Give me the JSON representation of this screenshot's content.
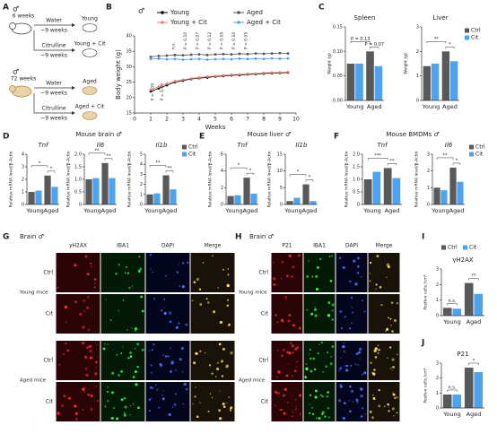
{
  "panel_labels": [
    "A",
    "B",
    "C",
    "D",
    "E",
    "F",
    "G",
    "H",
    "I",
    "J"
  ],
  "schematic": {
    "rows": [
      {
        "sex": "♂",
        "age": "6 weeks",
        "arms": [
          {
            "treatment": "Water",
            "duration": "~9 weeks",
            "group": "Young"
          },
          {
            "treatment": "Citrulline",
            "duration": "~9 weeks",
            "group": "Young + Cit"
          }
        ]
      },
      {
        "sex": "♂",
        "age": "72 weeks",
        "arms": [
          {
            "treatment": "Water",
            "duration": "~9 weeks",
            "group": "Aged"
          },
          {
            "treatment": "Citrulline",
            "duration": "~9 weeks",
            "group": "Aged + Cit"
          }
        ]
      }
    ]
  },
  "group_titles": [
    "Mouse brain ♂",
    "Mouse liver ♂",
    "Mouse BMDMs ♂"
  ],
  "micrographs": [
    {
      "title": "Brain ♂",
      "channels": [
        "γH2AX",
        "IBA1",
        "DAPI",
        "Merge"
      ],
      "groups": [
        {
          "label": "Young mice",
          "rows": [
            "Ctrl",
            "Cit"
          ]
        },
        {
          "label": "Aged mice",
          "rows": [
            "Ctrl",
            "Cit"
          ]
        }
      ]
    },
    {
      "title": "Brain ♂",
      "channels": [
        "P21",
        "IBA1",
        "DAPI",
        "Merge"
      ],
      "groups": [
        {
          "label": "Young mice",
          "rows": [
            "Ctrl",
            "Cit"
          ]
        },
        {
          "label": "Aged mice",
          "rows": [
            "Ctrl",
            "Cit"
          ]
        }
      ]
    }
  ],
  "chart_data": [
    {
      "type": "line",
      "title": "♂",
      "y_label": "Body weight (g)",
      "x_label": "Weeks",
      "x": [
        1,
        1.5,
        2,
        2.5,
        3,
        3.5,
        4,
        4.5,
        5,
        5.5,
        6,
        6.5,
        7,
        7.5,
        8,
        8.5,
        9,
        9.5
      ],
      "series": [
        {
          "name": "Young",
          "color": "#000000",
          "values": [
            22,
            23,
            24,
            25,
            25.5,
            26,
            26.3,
            26.5,
            26.8,
            27,
            27.2,
            27.3,
            27.5,
            27.6,
            27.8,
            27.9,
            28,
            28.1
          ]
        },
        {
          "name": "Young + Cit",
          "color": "#f07f72",
          "values": [
            22.5,
            23.5,
            24.5,
            25.3,
            25.8,
            26.2,
            26.5,
            26.8,
            27,
            27.2,
            27.4,
            27.5,
            27.7,
            27.8,
            28,
            28.1,
            28.2,
            28.3
          ]
        },
        {
          "name": "Aged",
          "color": "#555555",
          "values": [
            33.2,
            33.5,
            33.6,
            33.8,
            33.7,
            33.9,
            34,
            33.8,
            34,
            34.1,
            34,
            34.2,
            34.1,
            34.3,
            34.2,
            34.3,
            34.4,
            34.3
          ]
        },
        {
          "name": "Aged + Cit",
          "color": "#4da3f0",
          "values": [
            32.5,
            32.6,
            32.4,
            32.5,
            32.3,
            32.4,
            32.5,
            32.3,
            32.4,
            32.5,
            32.4,
            32.6,
            32.5,
            32.6,
            32.5,
            32.7,
            32.6,
            32.7
          ]
        }
      ],
      "xlim": [
        0,
        10
      ],
      "xticks": [
        0,
        1,
        2,
        3,
        4,
        5,
        6,
        7,
        8,
        9,
        10
      ],
      "ylim": [
        15,
        40
      ],
      "yticks": [
        15,
        20,
        25,
        30,
        35,
        40
      ],
      "annotations": [
        "P = 0.09",
        "P = 0.09",
        "n.s.",
        "P = 0.10",
        "P = 0.07",
        "P = 0.12",
        "P = 0.05",
        "P = 0.10",
        "P = 0.05"
      ]
    },
    {
      "type": "bar",
      "title": "Spleen",
      "y_label": "Weight (g)",
      "categories": [
        "Young",
        "Aged"
      ],
      "series": [
        {
          "name": "Ctrl",
          "color": "#595959",
          "values": [
            0.075,
            0.1
          ]
        },
        {
          "name": "Cit",
          "color": "#4da3f0",
          "values": [
            0.075,
            0.07
          ]
        }
      ],
      "ylim": [
        0,
        0.15
      ],
      "yticks": [
        {
          "value": 0,
          "label": "0.00"
        },
        {
          "value": 0.05,
          "label": "0.05"
        },
        {
          "value": 0.1,
          "label": "0.10"
        },
        {
          "value": 0.15,
          "label": "0.15"
        }
      ],
      "annotations": [
        "P = 0.13",
        "P = 0.07"
      ],
      "legend": false,
      "italic_title": false
    },
    {
      "type": "bar",
      "title": "Liver",
      "y_label": "Weight (g)",
      "categories": [
        "Young",
        "Aged"
      ],
      "series": [
        {
          "name": "Ctrl",
          "color": "#595959",
          "values": [
            1.4,
            2.0
          ]
        },
        {
          "name": "Cit",
          "color": "#4da3f0",
          "values": [
            1.5,
            1.6
          ]
        }
      ],
      "ylim": [
        0,
        3
      ],
      "yticks": [
        0,
        1,
        2,
        3
      ],
      "annotations": [
        "**",
        "*"
      ],
      "legend": true,
      "italic_title": false
    },
    {
      "type": "bar",
      "title": "Tnf",
      "y_label": "Relative mRNA level/β-Actin",
      "categories": [
        "Young",
        "Aged"
      ],
      "series": [
        {
          "name": "Ctrl",
          "color": "#595959",
          "values": [
            1.0,
            2.3
          ]
        },
        {
          "name": "Cit",
          "color": "#4da3f0",
          "values": [
            1.1,
            1.4
          ]
        }
      ],
      "ylim": [
        0,
        4
      ],
      "yticks": [
        0,
        1,
        2,
        3,
        4
      ],
      "annotations": [
        "*",
        "*"
      ],
      "legend": false,
      "italic_title": true
    },
    {
      "type": "bar",
      "title": "Il6",
      "y_label": "Relative mRNA level/β-Actin",
      "categories": [
        "Young",
        "Aged"
      ],
      "series": [
        {
          "name": "Ctrl",
          "color": "#595959",
          "values": [
            1.0,
            1.65
          ]
        },
        {
          "name": "Cit",
          "color": "#4da3f0",
          "values": [
            1.05,
            1.05
          ]
        }
      ],
      "ylim": [
        0,
        2
      ],
      "yticks": [
        0,
        0.5,
        {
          "value": 1,
          "label": "1.0"
        },
        1.5,
        {
          "value": 2,
          "label": "2.0"
        }
      ],
      "annotations": [
        "**",
        "**"
      ],
      "legend": false,
      "italic_title": true
    },
    {
      "type": "bar",
      "title": "Il1b",
      "y_label": "Relative mRNA level/β-Actin",
      "categories": [
        "Young",
        "Aged"
      ],
      "series": [
        {
          "name": "Ctrl",
          "color": "#595959",
          "values": [
            1.0,
            2.9
          ]
        },
        {
          "name": "Cit",
          "color": "#4da3f0",
          "values": [
            1.1,
            1.5
          ]
        }
      ],
      "ylim": [
        0,
        5
      ],
      "yticks": [
        0,
        1,
        2,
        3,
        4,
        5
      ],
      "annotations": [
        "**",
        "**"
      ],
      "legend": true,
      "italic_title": true
    },
    {
      "type": "bar",
      "title": "Tnf",
      "y_label": "Relative mRNA level/β-Actin",
      "categories": [
        "Young",
        "Aged"
      ],
      "series": [
        {
          "name": "Ctrl",
          "color": "#595959",
          "values": [
            1.0,
            3.2
          ]
        },
        {
          "name": "Cit",
          "color": "#4da3f0",
          "values": [
            1.1,
            1.3
          ]
        }
      ],
      "ylim": [
        0,
        6
      ],
      "yticks": [
        0,
        2,
        4,
        6
      ],
      "annotations": [
        "*",
        "*"
      ],
      "legend": false,
      "italic_title": true
    },
    {
      "type": "bar",
      "title": "Il1b",
      "y_label": "Relative mRNA level/β-Actin",
      "categories": [
        "Young",
        "Aged"
      ],
      "series": [
        {
          "name": "Ctrl",
          "color": "#595959",
          "values": [
            1.0,
            6.0
          ]
        },
        {
          "name": "Cit",
          "color": "#4da3f0",
          "values": [
            2.0,
            1.0
          ]
        }
      ],
      "ylim": [
        0,
        15
      ],
      "yticks": [
        0,
        5,
        10,
        15
      ],
      "annotations": [
        "*",
        "*"
      ],
      "legend": false,
      "italic_title": true
    },
    {
      "type": "bar",
      "title": "Tnf",
      "y_label": "Relative mRNA level/β-Actin",
      "categories": [
        "Young",
        "Aged"
      ],
      "series": [
        {
          "name": "Ctrl",
          "color": "#595959",
          "values": [
            1.0,
            1.45
          ]
        },
        {
          "name": "Cit",
          "color": "#4da3f0",
          "values": [
            1.3,
            1.05
          ]
        }
      ],
      "ylim": [
        0,
        2
      ],
      "yticks": [
        0,
        0.5,
        {
          "value": 1,
          "label": "1.0"
        },
        1.5,
        {
          "value": 2,
          "label": "2.0"
        }
      ],
      "annotations": [
        "***",
        "**"
      ],
      "legend": false,
      "italic_title": true
    },
    {
      "type": "bar",
      "title": "Il6",
      "y_label": "Relative mRNA level/β-Actin",
      "categories": [
        "Young",
        "Aged"
      ],
      "series": [
        {
          "name": "Ctrl",
          "color": "#595959",
          "values": [
            1.0,
            2.2
          ]
        },
        {
          "name": "Cit",
          "color": "#4da3f0",
          "values": [
            0.85,
            1.35
          ]
        }
      ],
      "ylim": [
        0,
        3
      ],
      "yticks": [
        0,
        1,
        2,
        3
      ],
      "annotations": [
        "**",
        "*"
      ],
      "legend": true,
      "italic_title": true
    },
    {
      "type": "bar",
      "title": "γH2AX",
      "y_label": "Postive cells /cm²",
      "categories": [
        "Young",
        "Aged"
      ],
      "series": [
        {
          "name": "Ctrl",
          "color": "#595959",
          "values": [
            0.5,
            2.1
          ]
        },
        {
          "name": "Cit",
          "color": "#4da3f0",
          "values": [
            0.45,
            1.4
          ]
        }
      ],
      "ylim": [
        0,
        3
      ],
      "yticks": [
        0,
        1,
        2,
        3
      ],
      "annotations": [
        "n.s.",
        "**"
      ],
      "legend": true,
      "italic_title": false
    },
    {
      "type": "bar",
      "title": "P21",
      "y_label": "Postive cells /cm²",
      "categories": [
        "Young",
        "Aged"
      ],
      "series": [
        {
          "name": "Ctrl",
          "color": "#595959",
          "values": [
            0.9,
            2.7
          ]
        },
        {
          "name": "Cit",
          "color": "#4da3f0",
          "values": [
            0.9,
            2.4
          ]
        }
      ],
      "ylim": [
        0,
        3
      ],
      "yticks": [
        0,
        1,
        2,
        3
      ],
      "annotations": [
        "n.s.",
        "*"
      ],
      "legend": false,
      "italic_title": false
    }
  ]
}
